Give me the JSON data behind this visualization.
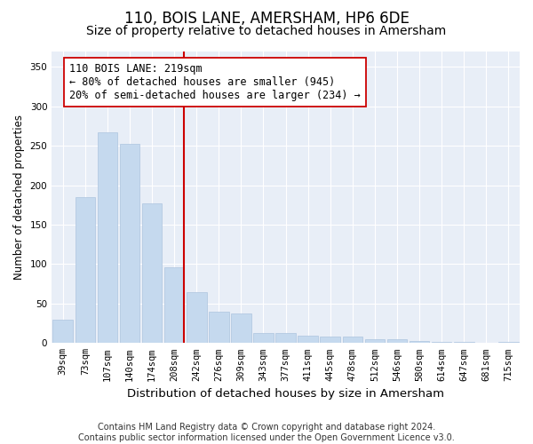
{
  "title": "110, BOIS LANE, AMERSHAM, HP6 6DE",
  "subtitle": "Size of property relative to detached houses in Amersham",
  "xlabel": "Distribution of detached houses by size in Amersham",
  "ylabel": "Number of detached properties",
  "categories": [
    "39sqm",
    "73sqm",
    "107sqm",
    "140sqm",
    "174sqm",
    "208sqm",
    "242sqm",
    "276sqm",
    "309sqm",
    "343sqm",
    "377sqm",
    "411sqm",
    "445sqm",
    "478sqm",
    "512sqm",
    "546sqm",
    "580sqm",
    "614sqm",
    "647sqm",
    "681sqm",
    "715sqm"
  ],
  "values": [
    30,
    185,
    267,
    252,
    177,
    96,
    65,
    40,
    38,
    13,
    13,
    9,
    8,
    8,
    5,
    5,
    3,
    2,
    1,
    0,
    1
  ],
  "bar_color": "#c5d9ee",
  "bar_edgecolor": "#adc4df",
  "vline_color": "#cc0000",
  "annotation_text": "110 BOIS LANE: 219sqm\n← 80% of detached houses are smaller (945)\n20% of semi-detached houses are larger (234) →",
  "annotation_box_facecolor": "#ffffff",
  "annotation_box_edgecolor": "#cc0000",
  "ylim": [
    0,
    370
  ],
  "yticks": [
    0,
    50,
    100,
    150,
    200,
    250,
    300,
    350
  ],
  "plot_bg_color": "#e8eef7",
  "grid_color": "#ffffff",
  "footer_text": "Contains HM Land Registry data © Crown copyright and database right 2024.\nContains public sector information licensed under the Open Government Licence v3.0.",
  "title_fontsize": 12,
  "subtitle_fontsize": 10,
  "xlabel_fontsize": 9.5,
  "ylabel_fontsize": 8.5,
  "tick_fontsize": 7.5,
  "annotation_fontsize": 8.5,
  "footer_fontsize": 7
}
